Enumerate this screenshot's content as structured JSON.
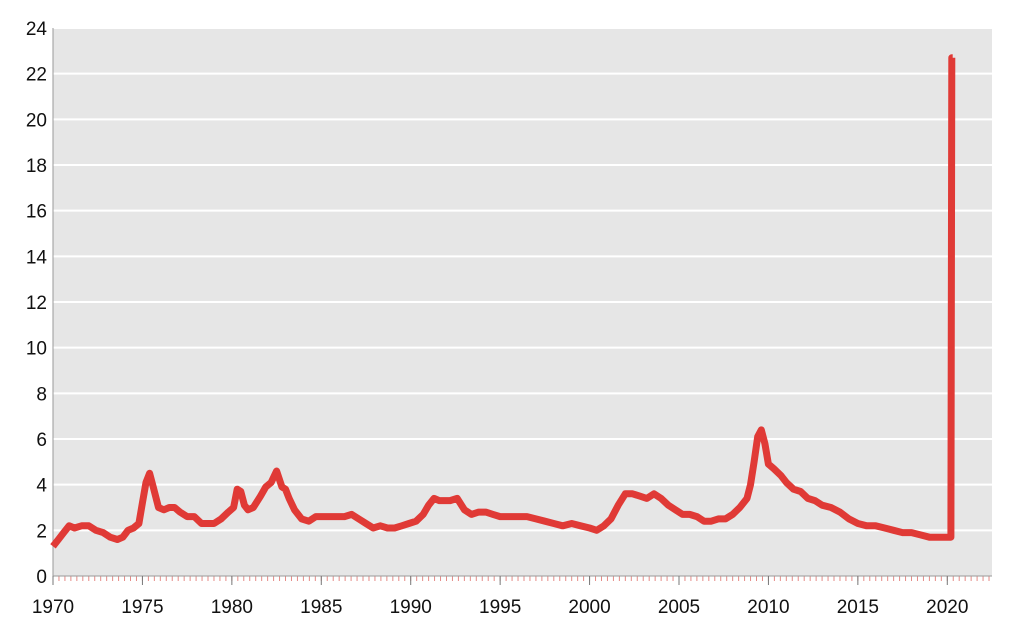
{
  "chart_data": {
    "type": "line",
    "title": "",
    "xlabel": "",
    "ylabel": "",
    "xlim": [
      1970,
      2022.5
    ],
    "ylim": [
      0,
      24
    ],
    "x_ticks": [
      1970,
      1975,
      1980,
      1985,
      1990,
      1995,
      2000,
      2005,
      2010,
      2015,
      2020
    ],
    "y_ticks": [
      0,
      2,
      4,
      6,
      8,
      10,
      12,
      14,
      16,
      18,
      20,
      22,
      24
    ],
    "grid": "horizontal",
    "legend": "none",
    "colors": {
      "plot_background": "#e6e6e6",
      "grid": "#ffffff",
      "line": "#e03a36",
      "minor_ticks": "#e58a86"
    },
    "series": [
      {
        "x": [
          1970.0,
          1970.3,
          1970.6,
          1970.9,
          1971.2,
          1971.6,
          1972.0,
          1972.4,
          1972.8,
          1973.2,
          1973.6,
          1973.9,
          1974.2,
          1974.5,
          1974.8,
          1975.0,
          1975.2,
          1975.4,
          1975.6,
          1975.9,
          1976.2,
          1976.5,
          1976.8,
          1977.1,
          1977.5,
          1977.9,
          1978.3,
          1978.7,
          1979.0,
          1979.4,
          1979.8,
          1980.1,
          1980.3,
          1980.5,
          1980.7,
          1980.9,
          1981.2,
          1981.6,
          1981.9,
          1982.2,
          1982.5,
          1982.8,
          1983.0,
          1983.2,
          1983.5,
          1983.9,
          1984.3,
          1984.7,
          1985.1,
          1985.5,
          1985.9,
          1986.3,
          1986.7,
          1987.1,
          1987.5,
          1987.9,
          1988.3,
          1988.7,
          1989.1,
          1989.5,
          1989.9,
          1990.3,
          1990.7,
          1991.0,
          1991.3,
          1991.6,
          1991.9,
          1992.2,
          1992.6,
          1993.0,
          1993.4,
          1993.8,
          1994.2,
          1994.6,
          1995.0,
          1995.5,
          1996.0,
          1996.5,
          1997.0,
          1997.5,
          1998.0,
          1998.5,
          1999.0,
          1999.5,
          2000.0,
          2000.4,
          2000.8,
          2001.2,
          2001.6,
          2002.0,
          2002.4,
          2002.8,
          2003.2,
          2003.6,
          2004.0,
          2004.4,
          2004.8,
          2005.2,
          2005.6,
          2006.0,
          2006.4,
          2006.8,
          2007.2,
          2007.6,
          2008.0,
          2008.4,
          2008.8,
          2009.0,
          2009.2,
          2009.4,
          2009.6,
          2009.8,
          2010.0,
          2010.3,
          2010.7,
          2011.0,
          2011.4,
          2011.8,
          2012.2,
          2012.6,
          2013.0,
          2013.5,
          2014.0,
          2014.5,
          2015.0,
          2015.5,
          2016.0,
          2016.5,
          2017.0,
          2017.5,
          2018.0,
          2018.5,
          2019.0,
          2019.5,
          2020.0,
          2020.2,
          2020.25,
          2020.3
        ],
        "values": [
          1.3,
          1.6,
          1.9,
          2.2,
          2.1,
          2.2,
          2.2,
          2.0,
          1.9,
          1.7,
          1.6,
          1.7,
          2.0,
          2.1,
          2.3,
          3.2,
          4.1,
          4.5,
          3.9,
          3.0,
          2.9,
          3.0,
          3.0,
          2.8,
          2.6,
          2.6,
          2.3,
          2.3,
          2.3,
          2.5,
          2.8,
          3.0,
          3.8,
          3.7,
          3.1,
          2.9,
          3.0,
          3.5,
          3.9,
          4.1,
          4.6,
          3.9,
          3.8,
          3.4,
          2.9,
          2.5,
          2.4,
          2.6,
          2.6,
          2.6,
          2.6,
          2.6,
          2.7,
          2.5,
          2.3,
          2.1,
          2.2,
          2.1,
          2.1,
          2.2,
          2.3,
          2.4,
          2.7,
          3.1,
          3.4,
          3.3,
          3.3,
          3.3,
          3.4,
          2.9,
          2.7,
          2.8,
          2.8,
          2.7,
          2.6,
          2.6,
          2.6,
          2.6,
          2.5,
          2.4,
          2.3,
          2.2,
          2.3,
          2.2,
          2.1,
          2.0,
          2.2,
          2.5,
          3.1,
          3.6,
          3.6,
          3.5,
          3.4,
          3.6,
          3.4,
          3.1,
          2.9,
          2.7,
          2.7,
          2.6,
          2.4,
          2.4,
          2.5,
          2.5,
          2.7,
          3.0,
          3.4,
          4.0,
          5.0,
          6.1,
          6.4,
          5.8,
          4.9,
          4.7,
          4.4,
          4.1,
          3.8,
          3.7,
          3.4,
          3.3,
          3.1,
          3.0,
          2.8,
          2.5,
          2.3,
          2.2,
          2.2,
          2.1,
          2.0,
          1.9,
          1.9,
          1.8,
          1.7,
          1.7,
          1.7,
          1.7,
          22.7,
          22.7
        ]
      }
    ]
  }
}
